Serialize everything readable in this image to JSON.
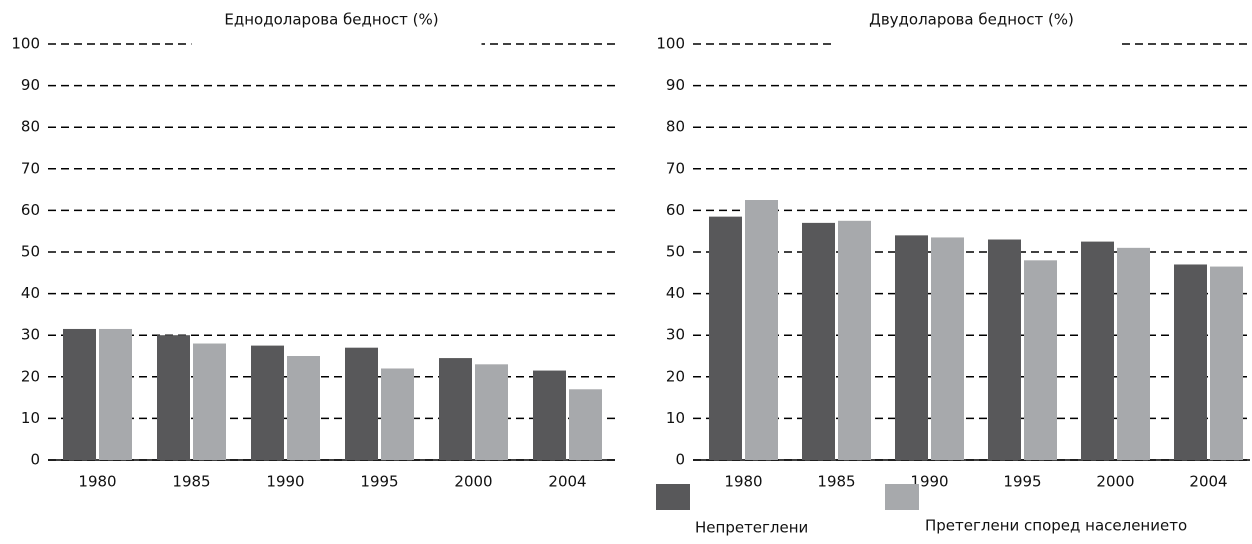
{
  "chart_data": [
    {
      "type": "bar",
      "title": "Еднодоларова бедност (%)",
      "categories": [
        "1980",
        "1985",
        "1990",
        "1995",
        "2000",
        "2004"
      ],
      "series": [
        {
          "name": "Непретеглени",
          "color": "#58585a",
          "values": [
            31.5,
            30,
            27.5,
            27,
            24.5,
            21.5
          ]
        },
        {
          "name": "Претеглени според населението",
          "color": "#a7a9ac",
          "values": [
            31.5,
            28,
            25,
            22,
            23,
            17
          ]
        }
      ],
      "ylim": [
        0,
        100
      ],
      "yticks": [
        0,
        10,
        20,
        30,
        40,
        50,
        60,
        70,
        80,
        90,
        100
      ],
      "grid": true
    },
    {
      "type": "bar",
      "title": "Двудоларова бедност (%)",
      "categories": [
        "1980",
        "1985",
        "1990",
        "1995",
        "2000",
        "2004"
      ],
      "series": [
        {
          "name": "Непретеглени",
          "color": "#58585a",
          "values": [
            58.5,
            57,
            54,
            53,
            52.5,
            47
          ]
        },
        {
          "name": "Претеглени според населението",
          "color": "#a7a9ac",
          "values": [
            62.5,
            57.5,
            53.5,
            48,
            51,
            46.5
          ]
        }
      ],
      "ylim": [
        0,
        100
      ],
      "yticks": [
        0,
        10,
        20,
        30,
        40,
        50,
        60,
        70,
        80,
        90,
        100
      ],
      "grid": true,
      "legend": "bottom-right"
    }
  ]
}
